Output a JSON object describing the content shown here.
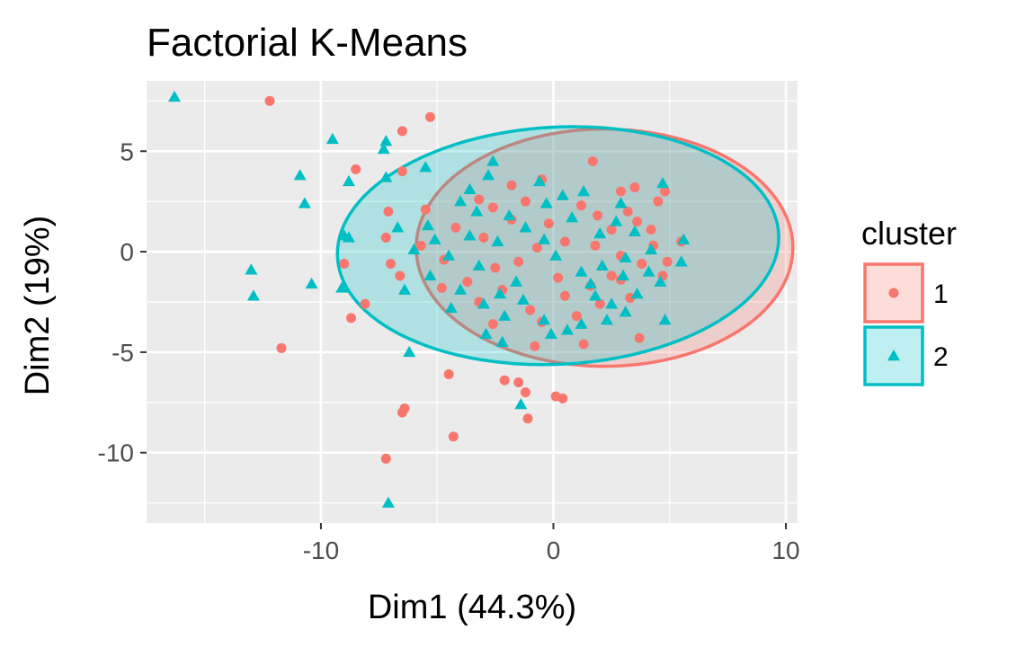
{
  "chart_data": {
    "type": "scatter",
    "title": "Factorial K-Means",
    "xlabel": "Dim1 (44.3%)",
    "ylabel": "Dim2 (19%)",
    "xlim": [
      -17.5,
      10.5
    ],
    "ylim": [
      -13.5,
      8.5
    ],
    "x_ticks": [
      -10,
      0,
      10
    ],
    "x_tick_labels": [
      "-10",
      "0",
      "10"
    ],
    "y_ticks": [
      5,
      0,
      -5,
      -10
    ],
    "y_tick_labels": [
      "5",
      "0",
      "-5",
      "-10"
    ],
    "grid": true,
    "legend": {
      "title": "cluster",
      "position": "right",
      "entries": [
        {
          "label": "1",
          "color": "#F8766D",
          "shape": "circle"
        },
        {
          "label": "2",
          "color": "#00BFC4",
          "shape": "triangle"
        }
      ]
    },
    "ellipses": [
      {
        "series": "1",
        "cx": 2.2,
        "cy": 0.2,
        "rx": 8.1,
        "ry": 5.9,
        "rotation_deg": 0,
        "color": "#F8766D"
      },
      {
        "series": "2",
        "cx": 0.2,
        "cy": 0.3,
        "rx": 9.5,
        "ry": 5.9,
        "rotation_deg": -3,
        "color": "#00BFC4"
      }
    ],
    "series": [
      {
        "name": "1",
        "color": "#F8766D",
        "shape": "circle",
        "points": [
          [
            -12.2,
            7.5
          ],
          [
            -5.3,
            6.7
          ],
          [
            -6.5,
            6.0
          ],
          [
            -8.5,
            4.1
          ],
          [
            -6.5,
            4.0
          ],
          [
            -8.7,
            -3.3
          ],
          [
            -11.7,
            -4.8
          ],
          [
            -8.1,
            -2.6
          ],
          [
            -9.0,
            -0.6
          ],
          [
            -4.5,
            -6.1
          ],
          [
            -2.1,
            -6.4
          ],
          [
            -1.5,
            -6.5
          ],
          [
            -1.2,
            -7.0
          ],
          [
            0.1,
            -7.2
          ],
          [
            0.4,
            -7.3
          ],
          [
            -1.1,
            -8.3
          ],
          [
            -6.4,
            -7.8
          ],
          [
            -6.5,
            -8.0
          ],
          [
            -4.3,
            -9.2
          ],
          [
            -7.2,
            -10.3
          ],
          [
            1.7,
            4.5
          ],
          [
            3.5,
            3.2
          ],
          [
            4.8,
            3.0
          ],
          [
            4.5,
            2.5
          ],
          [
            5.5,
            0.5
          ],
          [
            4.9,
            -0.5
          ],
          [
            4.7,
            -1.2
          ],
          [
            3.7,
            -4.3
          ],
          [
            -0.5,
            3.6
          ],
          [
            -1.8,
            3.3
          ],
          [
            -3.2,
            2.6
          ],
          [
            -5.5,
            2.1
          ],
          [
            -7.1,
            2.0
          ],
          [
            -7.2,
            0.7
          ],
          [
            -7.0,
            -0.6
          ],
          [
            -6.6,
            -1.2
          ],
          [
            -4.8,
            -1.8
          ],
          [
            -3.2,
            -2.5
          ],
          [
            -1.0,
            -2.9
          ],
          [
            -0.5,
            -3.5
          ],
          [
            -2.6,
            -3.6
          ],
          [
            1.0,
            -3.2
          ],
          [
            -0.8,
            -4.7
          ],
          [
            1.3,
            -4.6
          ],
          [
            2.9,
            3.0
          ],
          [
            3.2,
            2.0
          ],
          [
            3.6,
            1.5
          ],
          [
            2.5,
            1.1
          ],
          [
            1.8,
            0.3
          ],
          [
            2.9,
            -0.2
          ],
          [
            3.8,
            -0.6
          ],
          [
            2.5,
            -1.2
          ],
          [
            1.6,
            -1.7
          ],
          [
            2.9,
            -1.4
          ],
          [
            -0.2,
            1.4
          ],
          [
            0.5,
            0.5
          ],
          [
            -0.7,
            0.2
          ],
          [
            -1.5,
            -0.5
          ],
          [
            -2.5,
            -0.8
          ],
          [
            0.2,
            -1.3
          ],
          [
            -1.8,
            1.6
          ],
          [
            -3.0,
            0.7
          ],
          [
            -4.2,
            1.2
          ],
          [
            -4.7,
            -0.4
          ],
          [
            -5.7,
            0.3
          ],
          [
            -3.7,
            -1.5
          ],
          [
            -2.2,
            -1.9
          ],
          [
            4.2,
            1.1
          ],
          [
            4.3,
            0.3
          ],
          [
            3.3,
            -2.3
          ],
          [
            2.0,
            -2.6
          ],
          [
            0.5,
            -2.2
          ],
          [
            1.2,
            2.3
          ],
          [
            1.9,
            1.8
          ],
          [
            -2.6,
            2.2
          ],
          [
            -1.2,
            2.5
          ]
        ]
      },
      {
        "name": "2",
        "color": "#00BFC4",
        "shape": "triangle",
        "points": [
          [
            -16.3,
            7.7
          ],
          [
            -9.5,
            5.6
          ],
          [
            -7.2,
            5.5
          ],
          [
            -7.3,
            5.1
          ],
          [
            -10.9,
            3.8
          ],
          [
            -10.7,
            2.4
          ],
          [
            -13.0,
            -0.9
          ],
          [
            -12.9,
            -2.2
          ],
          [
            -10.4,
            -1.6
          ],
          [
            -9.1,
            -1.8
          ],
          [
            -8.8,
            0.7
          ],
          [
            -9.0,
            0.8
          ],
          [
            -7.2,
            3.7
          ],
          [
            -8.8,
            3.5
          ],
          [
            -6.2,
            -5.0
          ],
          [
            -1.4,
            -7.6
          ],
          [
            -7.1,
            -12.5
          ],
          [
            -5.5,
            4.2
          ],
          [
            -2.6,
            4.5
          ],
          [
            -2.8,
            3.8
          ],
          [
            4.7,
            3.4
          ],
          [
            5.6,
            0.6
          ],
          [
            5.5,
            -0.5
          ],
          [
            4.6,
            -1.5
          ],
          [
            4.8,
            -3.4
          ],
          [
            -0.3,
            2.4
          ],
          [
            -1.9,
            1.8
          ],
          [
            -3.3,
            2.0
          ],
          [
            -5.4,
            1.3
          ],
          [
            -6.0,
            0.1
          ],
          [
            -6.4,
            -1.9
          ],
          [
            -5.3,
            -1.2
          ],
          [
            -4.0,
            -1.9
          ],
          [
            -2.3,
            -2.1
          ],
          [
            -1.3,
            -2.4
          ],
          [
            -0.4,
            -3.4
          ],
          [
            -2.1,
            -3.2
          ],
          [
            -4.4,
            -2.8
          ],
          [
            -2.9,
            -4.1
          ],
          [
            -2.2,
            -4.5
          ],
          [
            1.2,
            -3.6
          ],
          [
            2.3,
            -3.4
          ],
          [
            3.1,
            -3.0
          ],
          [
            2.5,
            -2.6
          ],
          [
            1.8,
            -2.2
          ],
          [
            3.6,
            -2.1
          ],
          [
            4.1,
            -1.0
          ],
          [
            3.0,
            -1.2
          ],
          [
            1.2,
            -1.0
          ],
          [
            2.1,
            -0.7
          ],
          [
            3.1,
            -0.3
          ],
          [
            0.1,
            -0.2
          ],
          [
            -0.4,
            0.6
          ],
          [
            -1.2,
            1.2
          ],
          [
            -2.4,
            0.5
          ],
          [
            -3.6,
            0.8
          ],
          [
            -4.5,
            -0.2
          ],
          [
            -5.1,
            0.6
          ],
          [
            0.8,
            1.7
          ],
          [
            2.0,
            0.9
          ],
          [
            2.7,
            1.5
          ],
          [
            3.5,
            1.0
          ],
          [
            4.2,
            0.1
          ],
          [
            0.4,
            2.8
          ],
          [
            -0.6,
            3.5
          ],
          [
            1.3,
            3.0
          ],
          [
            -1.6,
            -1.5
          ],
          [
            -3.0,
            -2.6
          ],
          [
            0.6,
            -3.9
          ],
          [
            -0.1,
            -4.1
          ],
          [
            -3.6,
            3.1
          ],
          [
            -4.0,
            2.5
          ],
          [
            1.6,
            -1.6
          ],
          [
            2.9,
            2.4
          ],
          [
            -6.7,
            1.2
          ],
          [
            -3.2,
            -0.7
          ]
        ]
      }
    ]
  }
}
